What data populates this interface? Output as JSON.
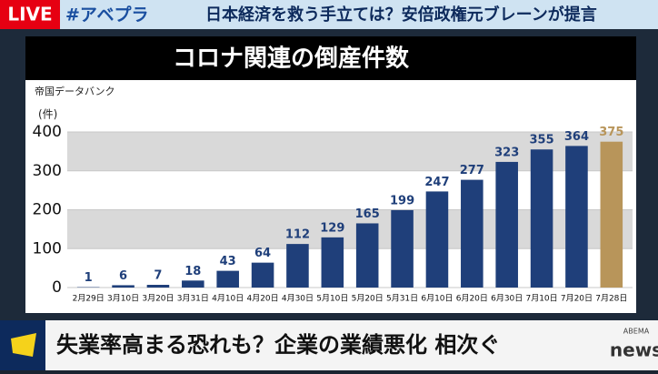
{
  "header": {
    "live": "LIVE",
    "hashtag": "#アベプラ",
    "headline": "日本経済を救う手立ては？安倍政権元ブレーンが提言"
  },
  "caption": "失業率高まる恐れも？企業の業績悪化 相次ぐ",
  "logo": {
    "top": "ABEMA",
    "bottom": "news"
  },
  "chart_data": {
    "type": "bar",
    "title": "コロナ関連の倒産件数",
    "source": "帝国データバンク",
    "y_label": "(件)",
    "categories": [
      "2月29日",
      "3月10日",
      "3月20日",
      "3月31日",
      "4月10日",
      "4月20日",
      "4月30日",
      "5月10日",
      "5月20日",
      "5月31日",
      "6月10日",
      "6月20日",
      "6月30日",
      "7月10日",
      "7月20日",
      "7月28日"
    ],
    "values": [
      1,
      6,
      7,
      18,
      43,
      64,
      112,
      129,
      165,
      199,
      247,
      277,
      323,
      355,
      364,
      375
    ],
    "colors": [
      "#1f3f7a",
      "#1f3f7a",
      "#1f3f7a",
      "#1f3f7a",
      "#1f3f7a",
      "#1f3f7a",
      "#1f3f7a",
      "#1f3f7a",
      "#1f3f7a",
      "#1f3f7a",
      "#1f3f7a",
      "#1f3f7a",
      "#1f3f7a",
      "#1f3f7a",
      "#1f3f7a",
      "#b8955a"
    ],
    "ylim": [
      0,
      400
    ],
    "yticks": [
      0,
      100,
      200,
      300,
      400
    ],
    "grid": true
  }
}
